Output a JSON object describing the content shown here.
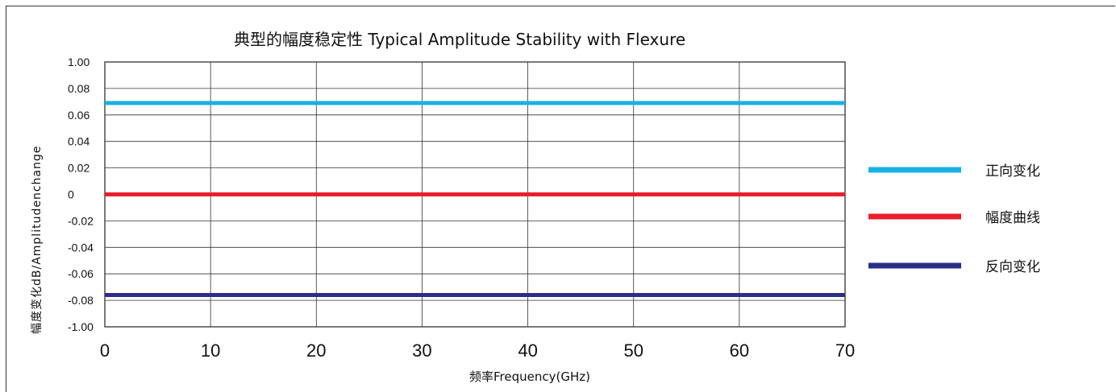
{
  "chart_data": {
    "type": "line",
    "title": "典型的幅度稳定性 Typical Amplitude Stability with Flexure",
    "xlabel": "频率Frequency(GHz)",
    "ylabel": "幅度变化dB/Amplitudenchange",
    "x_ticks": [
      "0",
      "10",
      "20",
      "30",
      "40",
      "50",
      "60",
      "70"
    ],
    "y_ticks": [
      "1.00",
      "0.08",
      "0.06",
      "0.04",
      "0.02",
      "0",
      "-0.02",
      "-0.04",
      "-0.06",
      "-0.08",
      "-1.00"
    ],
    "xlim": [
      0,
      70
    ],
    "grid": true,
    "legend_position": "right",
    "series": [
      {
        "name": "正向变化",
        "color": "#1ab0e6",
        "x": [
          0,
          70
        ],
        "y": [
          0.069,
          0.069
        ]
      },
      {
        "name": "幅度曲线",
        "color": "#e8202e",
        "x": [
          0,
          70
        ],
        "y": [
          0,
          0
        ]
      },
      {
        "name": "反向变化",
        "color": "#2b2e87",
        "x": [
          0,
          70
        ],
        "y": [
          -0.076,
          -0.076
        ]
      }
    ]
  }
}
